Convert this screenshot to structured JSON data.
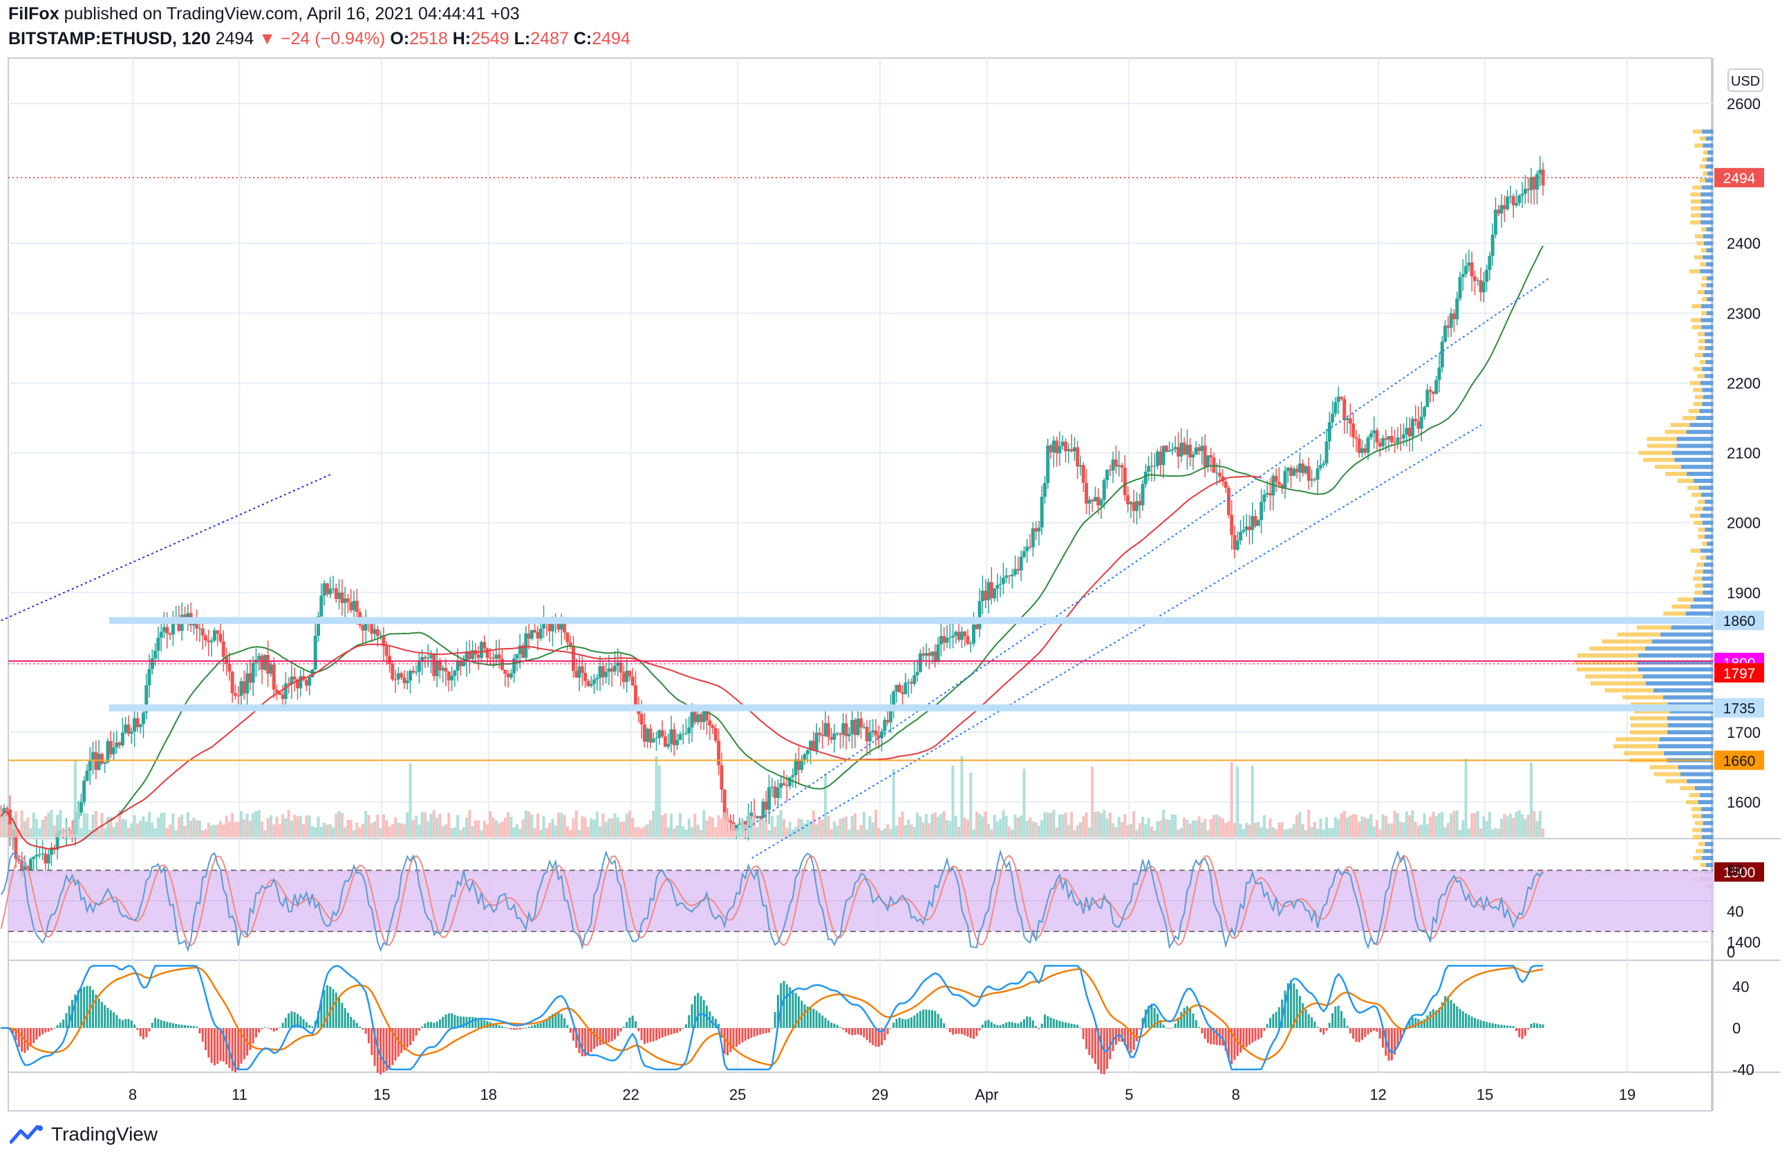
{
  "header": {
    "author": "FilFox",
    "published_text": "published on TradingView.com, April 16, 2021 04:44:41 +03",
    "symbol": "BITSTAMP:ETHUSD, 120",
    "last": "2494",
    "arrow": "▼",
    "change": "−24 (−0.94%)",
    "o_label": "O:",
    "o": "2518",
    "h_label": "H:",
    "h": "2549",
    "l_label": "L:",
    "l": "2487",
    "c_label": "C:",
    "c": "2494"
  },
  "footer": {
    "brand": "TradingView"
  },
  "colors": {
    "up": "#26a69a",
    "down": "#ef5350",
    "grid": "#e6eef5",
    "axis": "#131722",
    "ma_red": "#e5393f",
    "ma_green": "#2e8b3e",
    "stoch_fill": "#e1c8f5",
    "k_line": "#5b9bd5",
    "d_line": "#f28b82",
    "macd": "#2196f3",
    "signal": "#f57c00"
  },
  "chart_data": {
    "type": "candlestick",
    "currency": "USD",
    "price_axis": {
      "min": 1320,
      "max": 2680,
      "ticks": [
        1400,
        1600,
        1700,
        1900,
        2000,
        2100,
        2200,
        2300,
        2400,
        2600
      ]
    },
    "x_labels": [
      {
        "label": "8",
        "day": 8
      },
      {
        "label": "11",
        "day": 11
      },
      {
        "label": "15",
        "day": 15
      },
      {
        "label": "18",
        "day": 18
      },
      {
        "label": "22",
        "day": 22
      },
      {
        "label": "25",
        "day": 25
      },
      {
        "label": "29",
        "day": 29
      },
      {
        "label": "Apr",
        "day": 32
      },
      {
        "label": "5",
        "day": 36
      },
      {
        "label": "8",
        "day": 39
      },
      {
        "label": "12",
        "day": 43
      },
      {
        "label": "15",
        "day": 46
      },
      {
        "label": "19",
        "day": 50
      }
    ],
    "price_waypoints": [
      [
        4.5,
        1580
      ],
      [
        5.0,
        1500
      ],
      [
        5.6,
        1520
      ],
      [
        6.3,
        1560
      ],
      [
        7.0,
        1660
      ],
      [
        7.6,
        1680
      ],
      [
        8.2,
        1720
      ],
      [
        8.9,
        1840
      ],
      [
        9.7,
        1860
      ],
      [
        10.4,
        1840
      ],
      [
        11.0,
        1760
      ],
      [
        11.7,
        1800
      ],
      [
        12.3,
        1760
      ],
      [
        13.0,
        1780
      ],
      [
        13.5,
        1900
      ],
      [
        14.2,
        1880
      ],
      [
        14.9,
        1840
      ],
      [
        15.5,
        1780
      ],
      [
        16.3,
        1800
      ],
      [
        17.0,
        1780
      ],
      [
        17.8,
        1820
      ],
      [
        18.6,
        1790
      ],
      [
        19.4,
        1840
      ],
      [
        20.0,
        1860
      ],
      [
        20.7,
        1780
      ],
      [
        21.5,
        1790
      ],
      [
        22.0,
        1780
      ],
      [
        22.4,
        1700
      ],
      [
        23.2,
        1690
      ],
      [
        24.0,
        1730
      ],
      [
        24.4,
        1700
      ],
      [
        24.8,
        1560
      ],
      [
        25.5,
        1580
      ],
      [
        26.2,
        1620
      ],
      [
        26.8,
        1660
      ],
      [
        27.6,
        1700
      ],
      [
        28.4,
        1710
      ],
      [
        29.0,
        1690
      ],
      [
        29.6,
        1760
      ],
      [
        30.3,
        1800
      ],
      [
        31.0,
        1830
      ],
      [
        31.6,
        1840
      ],
      [
        32.1,
        1900
      ],
      [
        32.8,
        1930
      ],
      [
        33.4,
        1980
      ],
      [
        33.9,
        2110
      ],
      [
        34.5,
        2100
      ],
      [
        35.0,
        2020
      ],
      [
        35.7,
        2090
      ],
      [
        36.2,
        2020
      ],
      [
        36.8,
        2090
      ],
      [
        37.4,
        2110
      ],
      [
        38.0,
        2100
      ],
      [
        38.6,
        2080
      ],
      [
        39.1,
        1970
      ],
      [
        39.6,
        2000
      ],
      [
        40.2,
        2060
      ],
      [
        40.8,
        2080
      ],
      [
        41.4,
        2070
      ],
      [
        41.9,
        2180
      ],
      [
        42.5,
        2110
      ],
      [
        43.1,
        2120
      ],
      [
        43.6,
        2130
      ],
      [
        44.2,
        2140
      ],
      [
        44.6,
        2190
      ],
      [
        45.1,
        2290
      ],
      [
        45.6,
        2370
      ],
      [
        46.0,
        2330
      ],
      [
        46.4,
        2440
      ],
      [
        46.9,
        2460
      ],
      [
        47.3,
        2480
      ],
      [
        47.6,
        2494
      ]
    ],
    "horizontal_levels": [
      {
        "value": 1860,
        "label": "1860",
        "color": "#bbdefb",
        "text_color": "#131722",
        "style": "band"
      },
      {
        "value": 1800,
        "label": "1800",
        "color": "#e91e63",
        "text_color": "#ffffff",
        "badge": "#ff00ff",
        "style": "double"
      },
      {
        "value": 1797,
        "label": "1797",
        "color": "#ff0000",
        "text_color": "#ffffff",
        "badge": "#ff0000",
        "style": "badge"
      },
      {
        "value": 1735,
        "label": "1735",
        "color": "#bbdefb",
        "text_color": "#131722",
        "style": "band"
      },
      {
        "value": 1660,
        "label": "1660",
        "color": "#f5a623",
        "text_color": "#131722",
        "badge": "#ff9800",
        "style": "solid"
      },
      {
        "value": 1500,
        "label": "1500",
        "color": "#8b0000",
        "text_color": "#ffffff",
        "badge": "#8b0000",
        "style": "dotted"
      },
      {
        "value": 2494,
        "label": "2494",
        "color": "#ef5350",
        "text_color": "#ffffff",
        "badge": "#ef5350",
        "style": "dotted"
      }
    ],
    "trendlines": [
      {
        "from": [
          4.3,
          1860
        ],
        "to": [
          13.6,
          2070
        ],
        "color": "#2b2bd6"
      },
      {
        "from": [
          25.2,
          1560
        ],
        "to": [
          47.8,
          2350
        ],
        "color": "#2979ff"
      },
      {
        "from": [
          25.4,
          1520
        ],
        "to": [
          45.9,
          2140
        ],
        "color": "#2979ff"
      }
    ],
    "stochastic": {
      "range": [
        0,
        100
      ],
      "ticks": [
        0,
        40,
        80
      ],
      "band": [
        20,
        80
      ]
    },
    "macd": {
      "range": [
        -45,
        65
      ],
      "ticks": [
        -40,
        0,
        40
      ]
    }
  }
}
